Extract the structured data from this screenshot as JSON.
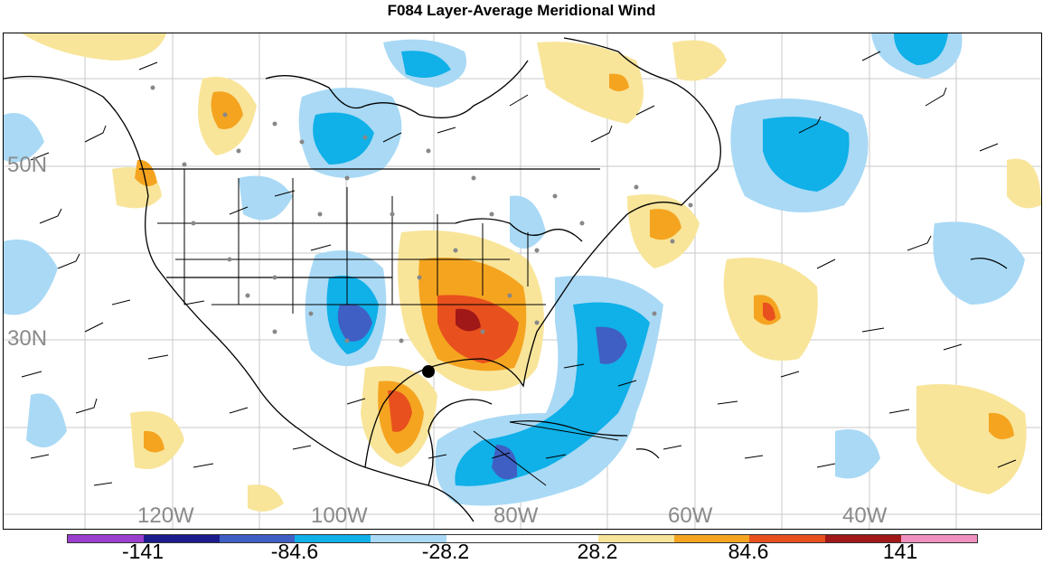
{
  "title": "F084 Layer-Average Meridional Wind",
  "map": {
    "latitude_labels": [
      "50N",
      "30N"
    ],
    "longitude_labels": [
      "120W",
      "100W",
      "80W",
      "60W",
      "40W"
    ]
  },
  "colorbar": {
    "colors": [
      "#9b3fcf",
      "#1c1c8c",
      "#3f5fc4",
      "#10b0e8",
      "#a9d9f5",
      "#ffffff",
      "#ffffff",
      "#f8e59a",
      "#f5a420",
      "#e8501e",
      "#a01818",
      "#f090c0"
    ],
    "labels": [
      "-141",
      "-84.6",
      "-28.2",
      "28.2",
      "84.6",
      "141"
    ]
  },
  "colors": {
    "light_blue": "#a9d9f5",
    "mid_blue": "#10b0e8",
    "dark_blue": "#3f5fc4",
    "light_yellow": "#f8e59a",
    "orange": "#f5a420",
    "red_orange": "#e8501e",
    "dark_red": "#a01818"
  }
}
